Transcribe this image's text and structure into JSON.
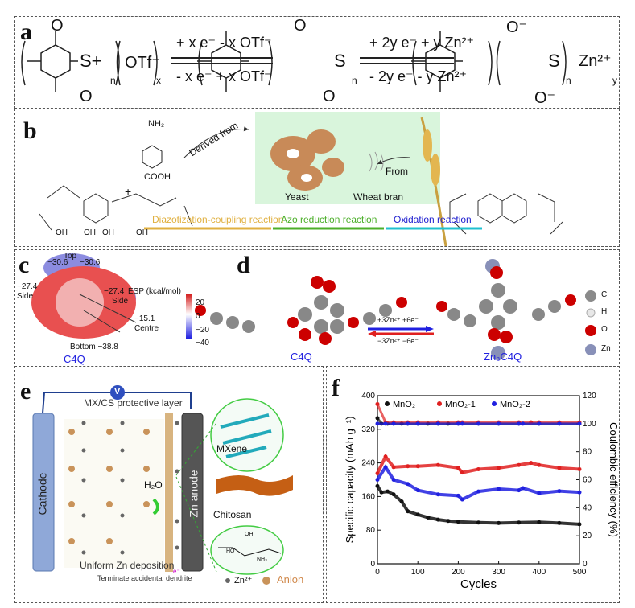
{
  "panels": {
    "a": "a",
    "b": "b",
    "c": "c",
    "d": "d",
    "e": "e",
    "f": "f"
  },
  "a": {
    "s_plus": "S+",
    "otf": "OTf⁻",
    "sub_n": "n",
    "sub_x": "x",
    "sub_y": "y",
    "arrow1_top": "+ x e⁻ - x OTf⁻",
    "arrow1_bottom": "- x e⁻ + x OTf⁻",
    "arrow2_top": "+ 2y e⁻ + y Zn²⁺",
    "arrow2_bottom": "- 2y e⁻ - y Zn²⁺",
    "s": "S",
    "o": "O",
    "o_minus": "O⁻",
    "zn": "Zn²⁺"
  },
  "b": {
    "nh2": "NH₂",
    "cooh": "COOH",
    "plus": "+",
    "derived": "Derived from",
    "yeast": "Yeast",
    "wheat": "Wheat bran",
    "from": "From",
    "oh": "OH",
    "steps": [
      {
        "label": "Diazotization-coupling reaction",
        "color": "#e0b040"
      },
      {
        "label": "Azo reduction reaction",
        "color": "#4caf2a"
      },
      {
        "label": "Oxidation reaction",
        "color": "#2020d0"
      }
    ]
  },
  "c": {
    "top": "Top",
    "v_top_left": "−30.6",
    "v_top_right": "−30.6",
    "v_side_left": "−27.4",
    "side_left": "Side",
    "v_side_right": "−27.4",
    "side_right": "Side",
    "esp": "ESP (kcal/mol)",
    "centre_val": "−15.1",
    "centre": "Centre",
    "bottom": "Bottom −38.8",
    "scale_ticks": [
      "20",
      "0",
      "−20",
      "−40"
    ],
    "name": "C4Q"
  },
  "d": {
    "left_name": "C4Q",
    "right_name": "Zn₃C4Q",
    "forward": "+3Zn²⁺ +6e⁻",
    "reverse": "−3Zn²⁺ −6e⁻",
    "legend": [
      {
        "label": "C",
        "color": "#8a8a8a"
      },
      {
        "label": "H",
        "color": "#e8e8e8"
      },
      {
        "label": "O",
        "color": "#cc0000"
      },
      {
        "label": "Zn",
        "color": "#8890b8"
      }
    ]
  },
  "e": {
    "voltmeter": "V",
    "layer": "MX/CS protective layer",
    "cathode": "Cathode",
    "anode": "Zn anode",
    "h2o": "H₂O",
    "mxene": "MXene",
    "chitosan": "Chitosan",
    "uniform": "Uniform Zn deposition",
    "dendrite": "Terminate accidental dendrite",
    "electron": "e⁻",
    "zn_legend": "Zn²⁺",
    "anion_legend": "Anion",
    "oh": "OH",
    "ho": "HO",
    "nh3": "NH₃"
  },
  "chart_data": {
    "type": "scatter",
    "xlabel": "Cycles",
    "ylabel": "Specific capacity (mAh g⁻¹)",
    "y2label": "Coulombic efficiency (%)",
    "xlim": [
      0,
      500
    ],
    "ylim": [
      0,
      400
    ],
    "y2lim": [
      0,
      120
    ],
    "xticks": [
      0,
      100,
      200,
      300,
      400,
      500
    ],
    "yticks": [
      0,
      80,
      160,
      240,
      320,
      400
    ],
    "y2ticks": [
      0,
      20,
      40,
      60,
      80,
      100,
      120
    ],
    "legend_position": "top",
    "series": [
      {
        "name": "MnO₂",
        "color": "#111111",
        "x": [
          0,
          10,
          25,
          40,
          60,
          75,
          100,
          125,
          150,
          175,
          200,
          250,
          300,
          350,
          400,
          450,
          500
        ],
        "capacity": [
          185,
          170,
          172,
          165,
          148,
          125,
          117,
          110,
          105,
          102,
          100,
          98,
          97,
          98,
          99,
          97,
          94
        ],
        "efficiency": [
          104,
          100,
          100,
          100,
          100,
          100,
          100,
          100,
          100,
          100,
          100,
          100,
          100,
          100,
          100,
          100,
          100
        ]
      },
      {
        "name": "MnO₂-1",
        "color": "#e02020",
        "x": [
          0,
          20,
          40,
          75,
          100,
          150,
          200,
          210,
          250,
          300,
          350,
          380,
          400,
          450,
          500
        ],
        "capacity": [
          215,
          255,
          230,
          232,
          232,
          235,
          228,
          217,
          225,
          228,
          235,
          240,
          235,
          228,
          225
        ],
        "efficiency": [
          114,
          101,
          101,
          101,
          101,
          101,
          101,
          101,
          101,
          101,
          101,
          101,
          101,
          101,
          101
        ]
      },
      {
        "name": "MnO₂-2",
        "color": "#2020e0",
        "x": [
          0,
          20,
          40,
          75,
          100,
          150,
          200,
          210,
          250,
          300,
          350,
          360,
          400,
          450,
          500
        ],
        "capacity": [
          200,
          230,
          200,
          190,
          175,
          165,
          162,
          153,
          172,
          178,
          175,
          180,
          168,
          173,
          170
        ],
        "efficiency": [
          100,
          100,
          100,
          100,
          100,
          100,
          100,
          100,
          100,
          100,
          100,
          100,
          100,
          100,
          100
        ]
      }
    ]
  }
}
